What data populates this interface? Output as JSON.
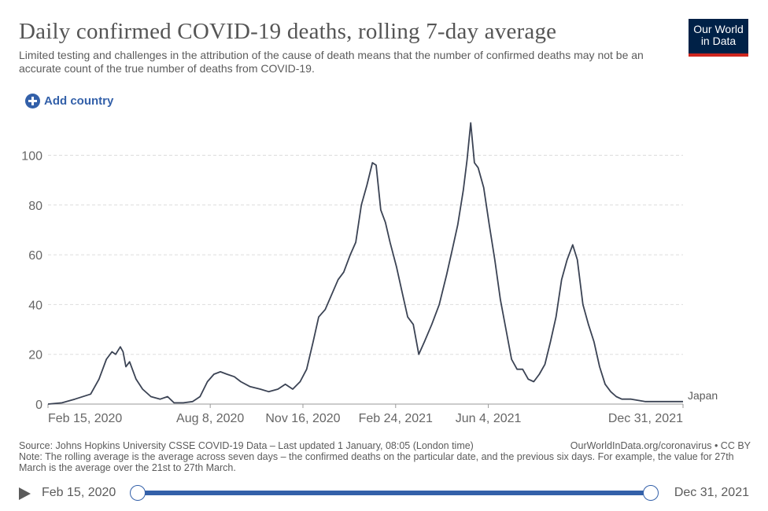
{
  "header": {
    "title": "Daily confirmed COVID-19 deaths, rolling 7-day average",
    "subtitle": "Limited testing and challenges in the attribution of the cause of death means that the number of confirmed deaths may not be an accurate count of the true number of deaths from COVID-19.",
    "logo_line1": "Our World",
    "logo_line2": "in Data"
  },
  "controls": {
    "add_country_label": "Add country"
  },
  "colors": {
    "line": "#3b4354",
    "accent": "#3360a9",
    "logo_bg": "#002147",
    "logo_bar": "#ce261e",
    "grid": "#dddddd"
  },
  "chart_data": {
    "type": "line",
    "title": "Daily confirmed COVID-19 deaths, rolling 7-day average",
    "xlabel": "",
    "ylabel": "",
    "ylim": [
      0,
      115
    ],
    "y_ticks": [
      0,
      20,
      40,
      60,
      80,
      100
    ],
    "x_range": [
      "2020-02-15",
      "2021-12-31"
    ],
    "x_tick_labels": [
      {
        "date": "2020-02-15",
        "label": "Feb 15, 2020"
      },
      {
        "date": "2020-08-08",
        "label": "Aug 8, 2020"
      },
      {
        "date": "2020-11-16",
        "label": "Nov 16, 2020"
      },
      {
        "date": "2021-02-24",
        "label": "Feb 24, 2021"
      },
      {
        "date": "2021-06-04",
        "label": "Jun 4, 2021"
      },
      {
        "date": "2021-12-31",
        "label": "Dec 31, 2021"
      }
    ],
    "grid": true,
    "series": [
      {
        "name": "Japan",
        "points": [
          [
            "2020-02-15",
            0
          ],
          [
            "2020-03-01",
            0.5
          ],
          [
            "2020-03-15",
            2
          ],
          [
            "2020-04-01",
            4
          ],
          [
            "2020-04-10",
            10
          ],
          [
            "2020-04-18",
            18
          ],
          [
            "2020-04-24",
            21
          ],
          [
            "2020-04-28",
            20
          ],
          [
            "2020-05-03",
            23
          ],
          [
            "2020-05-06",
            21
          ],
          [
            "2020-05-09",
            15
          ],
          [
            "2020-05-13",
            17
          ],
          [
            "2020-05-20",
            10
          ],
          [
            "2020-05-27",
            6
          ],
          [
            "2020-06-05",
            3
          ],
          [
            "2020-06-15",
            2
          ],
          [
            "2020-06-23",
            3
          ],
          [
            "2020-06-30",
            0.5
          ],
          [
            "2020-07-10",
            0.5
          ],
          [
            "2020-07-20",
            1
          ],
          [
            "2020-07-28",
            3
          ],
          [
            "2020-08-05",
            9
          ],
          [
            "2020-08-12",
            12
          ],
          [
            "2020-08-19",
            13
          ],
          [
            "2020-08-26",
            12
          ],
          [
            "2020-09-03",
            11
          ],
          [
            "2020-09-10",
            9
          ],
          [
            "2020-09-20",
            7
          ],
          [
            "2020-10-01",
            6
          ],
          [
            "2020-10-10",
            5
          ],
          [
            "2020-10-20",
            6
          ],
          [
            "2020-10-28",
            8
          ],
          [
            "2020-11-05",
            6
          ],
          [
            "2020-11-13",
            9
          ],
          [
            "2020-11-20",
            14
          ],
          [
            "2020-11-27",
            25
          ],
          [
            "2020-12-03",
            35
          ],
          [
            "2020-12-10",
            38
          ],
          [
            "2020-12-17",
            44
          ],
          [
            "2020-12-24",
            50
          ],
          [
            "2020-12-30",
            53
          ],
          [
            "2021-01-06",
            60
          ],
          [
            "2021-01-12",
            65
          ],
          [
            "2021-01-18",
            80
          ],
          [
            "2021-01-24",
            88
          ],
          [
            "2021-01-30",
            97
          ],
          [
            "2021-02-03",
            96
          ],
          [
            "2021-02-08",
            78
          ],
          [
            "2021-02-13",
            73
          ],
          [
            "2021-02-18",
            65
          ],
          [
            "2021-02-25",
            55
          ],
          [
            "2021-03-03",
            45
          ],
          [
            "2021-03-09",
            35
          ],
          [
            "2021-03-15",
            32
          ],
          [
            "2021-03-21",
            20
          ],
          [
            "2021-03-27",
            25
          ],
          [
            "2021-04-04",
            32
          ],
          [
            "2021-04-12",
            40
          ],
          [
            "2021-04-20",
            52
          ],
          [
            "2021-04-26",
            62
          ],
          [
            "2021-05-02",
            72
          ],
          [
            "2021-05-08",
            86
          ],
          [
            "2021-05-12",
            98
          ],
          [
            "2021-05-16",
            113
          ],
          [
            "2021-05-20",
            97
          ],
          [
            "2021-05-24",
            95
          ],
          [
            "2021-05-30",
            87
          ],
          [
            "2021-06-05",
            72
          ],
          [
            "2021-06-11",
            58
          ],
          [
            "2021-06-17",
            42
          ],
          [
            "2021-06-23",
            30
          ],
          [
            "2021-06-29",
            18
          ],
          [
            "2021-07-05",
            14
          ],
          [
            "2021-07-11",
            14
          ],
          [
            "2021-07-17",
            10
          ],
          [
            "2021-07-23",
            9
          ],
          [
            "2021-07-29",
            12
          ],
          [
            "2021-08-04",
            16
          ],
          [
            "2021-08-10",
            25
          ],
          [
            "2021-08-16",
            35
          ],
          [
            "2021-08-22",
            50
          ],
          [
            "2021-08-28",
            58
          ],
          [
            "2021-09-03",
            64
          ],
          [
            "2021-09-08",
            58
          ],
          [
            "2021-09-14",
            40
          ],
          [
            "2021-09-20",
            32
          ],
          [
            "2021-09-26",
            25
          ],
          [
            "2021-10-02",
            15
          ],
          [
            "2021-10-08",
            8
          ],
          [
            "2021-10-14",
            5
          ],
          [
            "2021-10-20",
            3
          ],
          [
            "2021-10-26",
            2
          ],
          [
            "2021-11-05",
            2
          ],
          [
            "2021-11-20",
            1
          ],
          [
            "2021-12-05",
            1
          ],
          [
            "2021-12-20",
            1
          ],
          [
            "2021-12-31",
            1
          ]
        ]
      }
    ]
  },
  "footer": {
    "source": "Source: Johns Hopkins University CSSE COVID-19 Data – Last updated 1 January, 08:05 (London time)",
    "site": "OurWorldInData.org/coronavirus • CC BY",
    "note": "Note: The rolling average is the average across seven days – the confirmed deaths on the particular date, and the previous six days. For example, the value for 27th March is the average over the 21st to 27th March."
  },
  "timeline": {
    "start_label": "Feb 15, 2020",
    "end_label": "Dec 31, 2021"
  }
}
